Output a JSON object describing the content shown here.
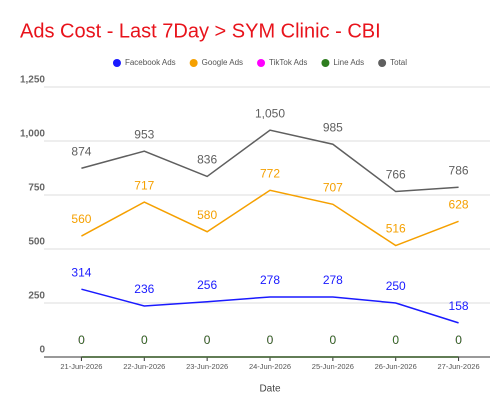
{
  "chart_data": {
    "type": "line",
    "title": "Ads Cost - Last 7Day > SYM Clinic - CBI",
    "x_label": "Date",
    "categories": [
      "21-Jun-2026",
      "22-Jun-2026",
      "23-Jun-2026",
      "24-Jun-2026",
      "25-Jun-2026",
      "26-Jun-2026",
      "27-Jun-2026"
    ],
    "series": [
      {
        "name": "Facebook Ads",
        "color": "#1a1aff",
        "values": [
          314,
          236,
          256,
          278,
          278,
          250,
          158
        ]
      },
      {
        "name": "Google Ads",
        "color": "#f5a000",
        "values": [
          560,
          717,
          580,
          772,
          707,
          516,
          628
        ]
      },
      {
        "name": "TikTok Ads",
        "color": "#ff00ff",
        "values": [
          0,
          0,
          0,
          0,
          0,
          0,
          0
        ]
      },
      {
        "name": "Line Ads",
        "color": "#2e7d1f",
        "values": [
          0,
          0,
          0,
          0,
          0,
          0,
          0
        ]
      },
      {
        "name": "Total",
        "color": "#5f5f5f",
        "values": [
          874,
          953,
          836,
          1050,
          985,
          766,
          786
        ],
        "value_labels": [
          "874",
          "953",
          "836",
          "1,050",
          "985",
          "766",
          "786"
        ]
      }
    ],
    "ylim": [
      0,
      1250
    ],
    "yticks": [
      0,
      250,
      500,
      750,
      {
        "value": 1000,
        "label": "1,000"
      },
      {
        "value": 1250,
        "label": "1,250"
      }
    ],
    "grid": true
  }
}
